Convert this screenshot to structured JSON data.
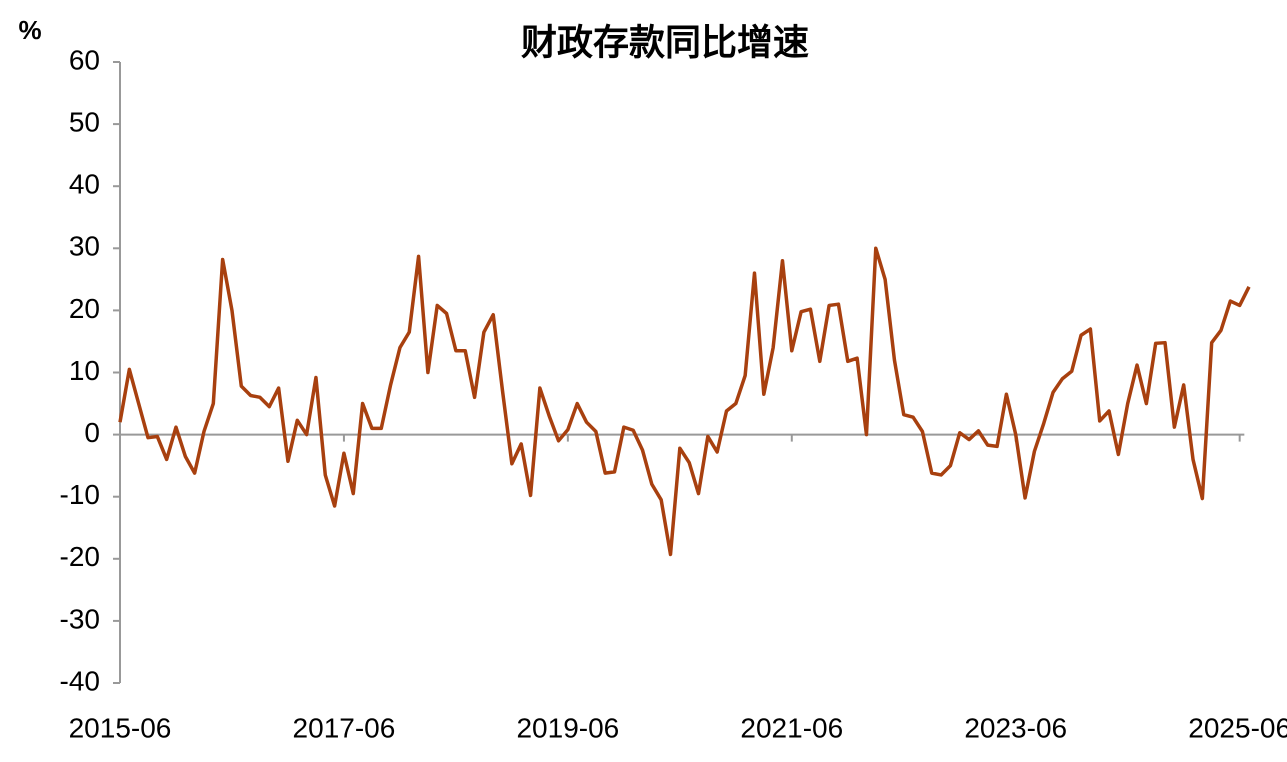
{
  "chart_data": {
    "type": "line",
    "title": "财政存款同比增速",
    "y_label": "%",
    "categories": [
      "2015-06",
      null,
      null,
      null,
      null,
      null,
      null,
      null,
      null,
      null,
      null,
      null,
      null,
      null,
      null,
      null,
      null,
      null,
      null,
      null,
      null,
      null,
      null,
      null,
      "2017-06",
      null,
      null,
      null,
      null,
      null,
      null,
      null,
      null,
      null,
      null,
      null,
      null,
      null,
      null,
      null,
      null,
      null,
      null,
      null,
      null,
      null,
      null,
      null,
      "2019-06",
      null,
      null,
      null,
      null,
      null,
      null,
      null,
      null,
      null,
      null,
      null,
      null,
      null,
      null,
      null,
      null,
      null,
      null,
      null,
      null,
      null,
      null,
      null,
      "2021-06",
      null,
      null,
      null,
      null,
      null,
      null,
      null,
      null,
      null,
      null,
      null,
      null,
      null,
      null,
      null,
      null,
      null,
      null,
      null,
      null,
      null,
      null,
      null,
      "2023-06",
      null,
      null,
      null,
      null,
      null,
      null,
      null,
      null,
      null,
      null,
      null,
      null,
      null,
      null,
      null,
      null,
      null,
      null,
      null,
      null,
      null,
      null,
      null,
      "2025-06",
      null
    ],
    "series": [
      {
        "name": "财政存款同比增速",
        "color": "#a8400f",
        "values": [
          2,
          10.5,
          5,
          -0.5,
          -0.3,
          -4,
          1.2,
          -3.5,
          -6.2,
          0.5,
          5,
          28.2,
          20,
          7.8,
          6.3,
          6,
          4.5,
          7.5,
          -4.3,
          2.3,
          0,
          9.2,
          -6.5,
          -11.5,
          -3,
          -9.5,
          5,
          1,
          1,
          8,
          14,
          16.5,
          28.7,
          10,
          20.8,
          19.5,
          13.5,
          13.5,
          6,
          16.5,
          19.3,
          7,
          -4.7,
          -1.5,
          -9.8,
          7.5,
          3,
          -1,
          0.8,
          5,
          2,
          0.5,
          -6.2,
          -6,
          1.2,
          0.7,
          -2.5,
          -8,
          -10.5,
          -19.3,
          -2.2,
          -4.5,
          -9.5,
          -0.3,
          -2.8,
          3.8,
          5,
          9.5,
          26,
          6.5,
          14,
          28,
          13.5,
          19.8,
          20.2,
          11.8,
          20.8,
          21,
          11.8,
          12.3,
          0,
          30,
          25,
          12,
          3.2,
          2.8,
          0.5,
          -6.2,
          -6.5,
          -5,
          0.3,
          -0.8,
          0.6,
          -1.7,
          -1.9,
          6.5,
          0,
          -10.2,
          -2.7,
          1.8,
          6.8,
          9,
          10.2,
          16,
          17,
          2.2,
          3.8,
          -3.2,
          5,
          11.2,
          5,
          14.7,
          14.8,
          1.2,
          8,
          -4,
          -10.3,
          14.8,
          16.8,
          21.5,
          20.8,
          23.8
        ]
      }
    ],
    "ylim": [
      -40,
      60
    ],
    "yticks": [
      -40,
      -30,
      -20,
      -10,
      0,
      10,
      20,
      30,
      40,
      50,
      60
    ]
  }
}
